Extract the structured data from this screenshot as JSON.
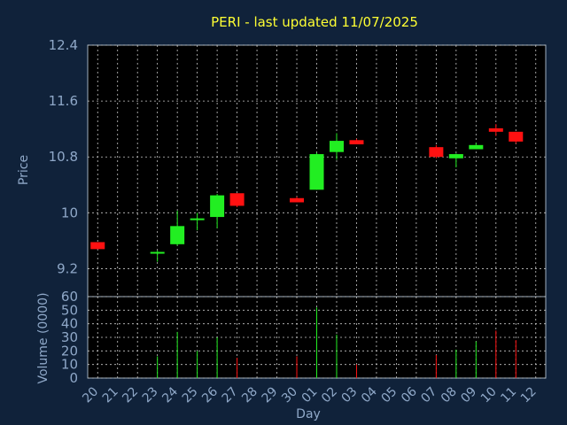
{
  "chart_data": {
    "type": "candlestick",
    "title": "PERI - last updated 11/07/2025",
    "xlabel": "Day",
    "ylabel_price": "Price",
    "ylabel_volume": "Volume (0000)",
    "price_ylim": [
      8.8,
      12.4
    ],
    "price_yticks": [
      "12.4",
      "11.6",
      "10.8",
      "10",
      "9.2"
    ],
    "volume_ylim": [
      0,
      60
    ],
    "volume_yticks": [
      "60",
      "50",
      "40",
      "30",
      "20",
      "10",
      "0"
    ],
    "grid": true,
    "colors": {
      "background": "#10223a",
      "plot_bg": "#000000",
      "title": "#ffff33",
      "axis_text": "#8fa8c8",
      "up": "#22ee22",
      "down": "#ff1111"
    },
    "x_labels": [
      "20",
      "21",
      "22",
      "23",
      "24",
      "25",
      "26",
      "27",
      "28",
      "29",
      "30",
      "01",
      "02",
      "03",
      "04",
      "05",
      "06",
      "07",
      "08",
      "09",
      "10",
      "11",
      "12"
    ],
    "candles": [
      {
        "day": "20",
        "open": 9.58,
        "high": 9.58,
        "low": 9.48,
        "close": 9.48
      },
      {
        "day": "23",
        "open": 9.42,
        "high": 9.46,
        "low": 9.3,
        "close": 9.44
      },
      {
        "day": "24",
        "open": 9.55,
        "high": 10.03,
        "low": 9.53,
        "close": 9.81
      },
      {
        "day": "25",
        "open": 9.9,
        "high": 10.0,
        "low": 9.75,
        "close": 9.92
      },
      {
        "day": "26",
        "open": 9.94,
        "high": 10.27,
        "low": 9.78,
        "close": 10.25
      },
      {
        "day": "27",
        "open": 10.28,
        "high": 10.28,
        "low": 10.08,
        "close": 10.1
      },
      {
        "day": "30",
        "open": 10.21,
        "high": 10.23,
        "low": 10.15,
        "close": 10.15
      },
      {
        "day": "01",
        "open": 10.33,
        "high": 10.86,
        "low": 10.33,
        "close": 10.84
      },
      {
        "day": "02",
        "open": 10.87,
        "high": 11.14,
        "low": 10.76,
        "close": 11.03
      },
      {
        "day": "03",
        "open": 11.04,
        "high": 11.06,
        "low": 10.98,
        "close": 10.98
      },
      {
        "day": "07",
        "open": 10.94,
        "high": 10.97,
        "low": 10.78,
        "close": 10.8
      },
      {
        "day": "08",
        "open": 10.78,
        "high": 10.85,
        "low": 10.65,
        "close": 10.84
      },
      {
        "day": "09",
        "open": 10.91,
        "high": 11.0,
        "low": 10.91,
        "close": 10.97
      },
      {
        "day": "10",
        "open": 11.21,
        "high": 11.27,
        "low": 11.1,
        "close": 11.16
      },
      {
        "day": "11",
        "open": 11.16,
        "high": 11.16,
        "low": 10.99,
        "close": 11.02
      }
    ],
    "volumes": [
      {
        "day": "23",
        "value": 16,
        "dir": "up"
      },
      {
        "day": "24",
        "value": 34,
        "dir": "up"
      },
      {
        "day": "25",
        "value": 20,
        "dir": "up"
      },
      {
        "day": "26",
        "value": 30,
        "dir": "up"
      },
      {
        "day": "27",
        "value": 15,
        "dir": "down"
      },
      {
        "day": "30",
        "value": 16,
        "dir": "down"
      },
      {
        "day": "01",
        "value": 52,
        "dir": "up"
      },
      {
        "day": "02",
        "value": 32,
        "dir": "up"
      },
      {
        "day": "03",
        "value": 10,
        "dir": "down"
      },
      {
        "day": "07",
        "value": 17,
        "dir": "down"
      },
      {
        "day": "08",
        "value": 21,
        "dir": "up"
      },
      {
        "day": "09",
        "value": 27,
        "dir": "up"
      },
      {
        "day": "10",
        "value": 35,
        "dir": "down"
      },
      {
        "day": "11",
        "value": 28,
        "dir": "down"
      }
    ]
  }
}
